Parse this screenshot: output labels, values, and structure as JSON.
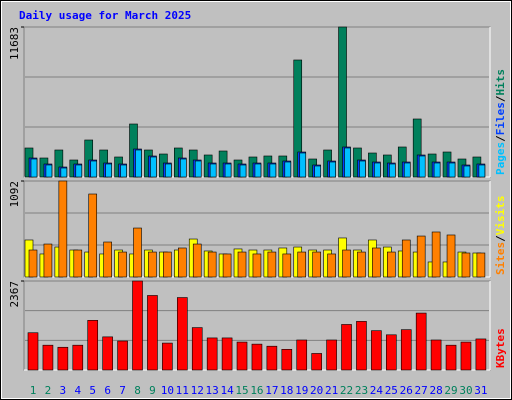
{
  "title": "Daily usage for March 2025",
  "chart_data": [
    {
      "type": "bar",
      "ylim": [
        0,
        11683
      ],
      "yticks": [
        11683
      ],
      "series": [
        {
          "name": "Hits",
          "color": "#00805c",
          "values": [
            2259,
            1480,
            2103,
            1324,
            2882,
            2103,
            1558,
            4128,
            2103,
            1791,
            2259,
            2103,
            1714,
            2025,
            1324,
            1558,
            1636,
            1636,
            9113,
            1402,
            2103,
            11683,
            2259,
            1869,
            1714,
            2337,
            4518,
            1791,
            1947,
            1402,
            1558
          ]
        },
        {
          "name": "Files",
          "color": "#0040ff",
          "values": [
            1480,
            1013,
            779,
            1013,
            1324,
            1090,
            1013,
            2181,
            1636,
            1090,
            1480,
            1324,
            1090,
            1090,
            1013,
            1090,
            1090,
            1246,
            1947,
            935,
            1246,
            2337,
            1324,
            1168,
            1090,
            1168,
            1714,
            1168,
            1168,
            935,
            1013
          ]
        },
        {
          "name": "Pages",
          "color": "#00c0ff",
          "values": [
            1402,
            935,
            701,
            935,
            1246,
            1013,
            935,
            2103,
            1558,
            1013,
            1402,
            1246,
            1013,
            1013,
            935,
            1013,
            1013,
            1168,
            1869,
            857,
            1168,
            2259,
            1246,
            1090,
            1013,
            1090,
            1636,
            1090,
            1090,
            857,
            935
          ]
        }
      ]
    },
    {
      "type": "bar",
      "ylim": [
        0,
        1092
      ],
      "yticks": [
        1092
      ],
      "series": [
        {
          "name": "Visits",
          "color": "#ffff00",
          "values": [
            421,
            262,
            341,
            307,
            284,
            262,
            307,
            262,
            307,
            284,
            307,
            432,
            296,
            262,
            319,
            307,
            307,
            330,
            341,
            307,
            307,
            444,
            307,
            421,
            341,
            296,
            284,
            171,
            171,
            284,
            273
          ]
        },
        {
          "name": "Sites",
          "color": "#ff8000",
          "values": [
            307,
            375,
            1092,
            307,
            944,
            398,
            284,
            557,
            284,
            284,
            330,
            375,
            284,
            262,
            284,
            262,
            284,
            262,
            284,
            284,
            262,
            307,
            284,
            330,
            284,
            421,
            466,
            512,
            478,
            273,
            273
          ]
        }
      ]
    },
    {
      "type": "bar",
      "ylim": [
        0,
        2367
      ],
      "yticks": [
        2367
      ],
      "categories": [
        "1",
        "2",
        "3",
        "4",
        "5",
        "6",
        "7",
        "8",
        "9",
        "10",
        "11",
        "12",
        "13",
        "14",
        "15",
        "16",
        "17",
        "18",
        "19",
        "20",
        "21",
        "22",
        "23",
        "24",
        "25",
        "26",
        "27",
        "28",
        "29",
        "30",
        "31"
      ],
      "category_colors": [
        "#00805c",
        "#00805c",
        "#0000ff",
        "#0000ff",
        "#0000ff",
        "#0000ff",
        "#0000ff",
        "#00805c",
        "#00805c",
        "#0000ff",
        "#0000ff",
        "#0000ff",
        "#0000ff",
        "#0000ff",
        "#00805c",
        "#00805c",
        "#0000ff",
        "#0000ff",
        "#0000ff",
        "#0000ff",
        "#0000ff",
        "#00805c",
        "#00805c",
        "#0000ff",
        "#0000ff",
        "#0000ff",
        "#0000ff",
        "#0000ff",
        "#00805c",
        "#00805c",
        "#0000ff"
      ],
      "series": [
        {
          "name": "KBytes",
          "color": "#ff0000",
          "values": [
            991,
            660,
            605,
            660,
            1321,
            881,
            771,
            2367,
            1982,
            716,
            1927,
            1128,
            853,
            853,
            743,
            688,
            633,
            550,
            798,
            440,
            798,
            1211,
            1293,
            1046,
            936,
            1073,
            1514,
            798,
            660,
            743,
            826
          ]
        }
      ]
    }
  ]
}
